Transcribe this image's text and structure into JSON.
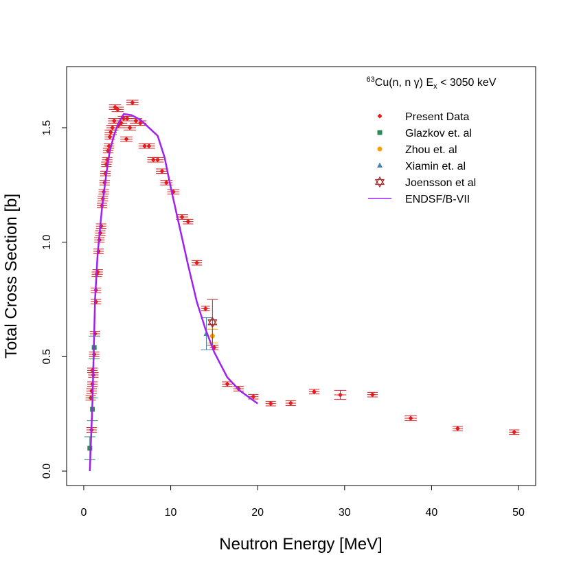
{
  "chart_data": {
    "type": "scatter",
    "annotation": {
      "superscript": "63",
      "main": "Cu(n, n γ) E",
      "subscript": "x",
      "rest": " < 3050 keV"
    },
    "x_label": "Neutron Energy [MeV]",
    "y_label": "Total Cross Section [b]",
    "xlim": [
      -1.97,
      51.97
    ],
    "ylim": [
      -0.063,
      1.767
    ],
    "xticks": [
      0,
      10,
      20,
      30,
      40,
      50
    ],
    "yticks": [
      {
        "value": 0,
        "label": "0.0"
      },
      0.5,
      {
        "value": 1,
        "label": "1.0"
      },
      1.5
    ],
    "legend": "topright",
    "series": [
      {
        "name": "Present Data",
        "color": "#e41a1c",
        "marker": "diamond",
        "x": [
          0.9,
          0.8,
          0.9,
          1.0,
          1.1,
          1.0,
          1.2,
          1.3,
          1.4,
          1.4,
          1.5,
          1.6,
          1.7,
          1.8,
          1.9,
          2.0,
          2.1,
          2.2,
          2.3,
          2.4,
          2.5,
          2.6,
          2.7,
          2.8,
          2.9,
          3.0,
          3.1,
          3.3,
          3.5,
          3.6,
          3.9,
          4.0,
          4.3,
          4.6,
          4.9,
          5.0,
          5.3,
          5.6,
          6.0,
          6.5,
          7.0,
          7.5,
          8.0,
          8.5,
          9.0,
          9.5,
          10.3,
          11.3,
          12.0,
          13.0,
          14.0,
          15.0,
          16.5,
          17.8,
          19.5,
          21.5,
          23.8,
          26.5,
          29.5,
          33.2,
          37.6,
          43.0,
          49.5
        ],
        "values": [
          0.18,
          0.32,
          0.35,
          0.38,
          0.42,
          0.44,
          0.51,
          0.6,
          0.74,
          0.79,
          0.86,
          0.87,
          0.96,
          1.01,
          1.04,
          1.07,
          1.16,
          1.19,
          1.22,
          1.26,
          1.3,
          1.34,
          1.36,
          1.4,
          1.42,
          1.46,
          1.48,
          1.5,
          1.53,
          1.59,
          1.58,
          1.51,
          1.52,
          1.54,
          1.45,
          1.54,
          1.5,
          1.61,
          1.53,
          1.52,
          1.42,
          1.42,
          1.36,
          1.36,
          1.31,
          1.26,
          1.22,
          1.11,
          1.09,
          0.91,
          0.71,
          0.54,
          0.38,
          0.36,
          0.325,
          0.295,
          0.297,
          0.347,
          0.333,
          0.334,
          0.231,
          0.186,
          0.17
        ],
        "xerr": [
          0.6,
          0.6,
          0.6,
          0.6,
          0.6,
          0.6,
          0.6,
          0.6,
          0.6,
          0.6,
          0.6,
          0.6,
          0.6,
          0.6,
          0.6,
          0.6,
          0.6,
          0.6,
          0.6,
          0.6,
          0.6,
          0.6,
          0.6,
          0.6,
          0.6,
          0.6,
          0.7,
          0.7,
          0.7,
          0.7,
          0.7,
          0.7,
          0.7,
          0.7,
          0.7,
          0.7,
          0.7,
          0.7,
          0.7,
          0.7,
          0.7,
          0.7,
          0.7,
          0.7,
          0.7,
          0.7,
          0.7,
          0.7,
          0.6,
          0.6,
          0.5,
          0.5,
          0.6,
          0.6,
          0.6,
          0.6,
          0.6,
          0.6,
          0.7,
          0.6,
          0.7,
          0.6,
          0.6
        ],
        "yerr": [
          0.01,
          0.01,
          0.01,
          0.01,
          0.01,
          0.01,
          0.01,
          0.01,
          0.01,
          0.01,
          0.01,
          0.01,
          0.01,
          0.01,
          0.01,
          0.01,
          0.01,
          0.01,
          0.01,
          0.01,
          0.01,
          0.01,
          0.01,
          0.01,
          0.01,
          0.01,
          0.01,
          0.01,
          0.01,
          0.01,
          0.01,
          0.01,
          0.01,
          0.01,
          0.01,
          0.01,
          0.01,
          0.01,
          0.01,
          0.01,
          0.01,
          0.01,
          0.01,
          0.01,
          0.01,
          0.01,
          0.01,
          0.01,
          0.01,
          0.01,
          0.01,
          0.01,
          0.01,
          0.01,
          0.01,
          0.01,
          0.01,
          0.01,
          0.02,
          0.01,
          0.01,
          0.01,
          0.01
        ]
      },
      {
        "name": "Glazkov et. al",
        "color": "#2e8b57",
        "marker": "square",
        "x": [
          0.7,
          1.0,
          1.2
        ],
        "values": [
          0.1,
          0.27,
          0.54
        ],
        "yerr": [
          0.05,
          0.05,
          0.05
        ]
      },
      {
        "name": "Zhou et. al",
        "color": "#f5a000",
        "marker": "circle",
        "x": [
          14.8
        ],
        "values": [
          0.59
        ],
        "yerr": [
          0.03
        ]
      },
      {
        "name": "Xiamin et. al",
        "color": "#4682b4",
        "marker": "triangle",
        "x": [
          14.1
        ],
        "values": [
          0.6
        ],
        "yerr": [
          0.07
        ]
      },
      {
        "name": "Joensson et al",
        "color": "#a52a2a",
        "marker": "hexagram",
        "x": [
          14.8
        ],
        "values": [
          0.65
        ],
        "yerr": [
          0.1
        ]
      },
      {
        "name": "ENDSF/B-VII",
        "color": "#a020f0",
        "marker": "line",
        "x": [
          0.7,
          1.0,
          1.3,
          1.6,
          2.1,
          2.6,
          3.0,
          3.5,
          4.0,
          4.6,
          5.5,
          6.5,
          8.5,
          9.3,
          10.0,
          11.0,
          12.0,
          13.0,
          14.0,
          15.0,
          16.5,
          18.0,
          20.0
        ],
        "values": [
          0,
          0.3,
          0.75,
          0.95,
          1.15,
          1.3,
          1.4,
          1.47,
          1.52,
          1.56,
          1.555,
          1.535,
          1.465,
          1.37,
          1.24,
          1.07,
          0.9,
          0.74,
          0.62,
          0.52,
          0.41,
          0.35,
          0.295
        ]
      }
    ]
  }
}
